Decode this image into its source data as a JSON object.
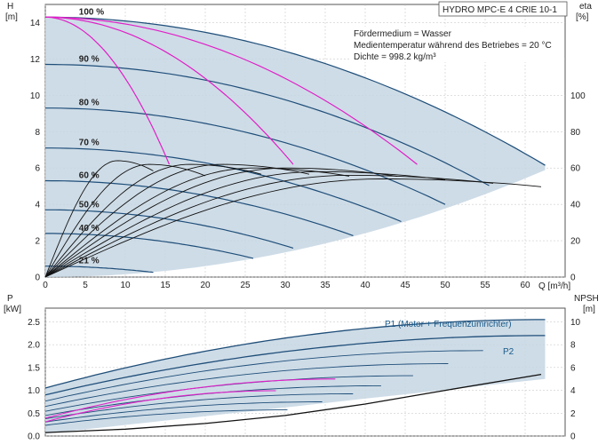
{
  "chart_data": [
    {
      "type": "line",
      "title": "HYDRO MPC-E 4 CRIE 10-1",
      "ylabel": "H",
      "yunit": "[m]",
      "xlabel": "Q [m³/h]",
      "y2label": "eta",
      "y2unit": "[%]",
      "xlim": [
        0,
        65
      ],
      "ylim": [
        0,
        15
      ],
      "y2lim": [
        0,
        150
      ],
      "x_ticks": [
        "0",
        "5",
        "10",
        "15",
        "20",
        "25",
        "30",
        "35",
        "40",
        "45",
        "50",
        "55",
        "60"
      ],
      "y_ticks": [
        "0",
        "2",
        "4",
        "6",
        "8",
        "10",
        "12",
        "14"
      ],
      "y2_ticks": [
        "0",
        "20",
        "40",
        "60",
        "80",
        "100"
      ],
      "grid": true,
      "annotations": [
        "Fördermedium = Wasser",
        "Medientemperatur während des Betriebes = 20 °C",
        "Dichte = 998.2 kg/m³"
      ],
      "speed_labels": [
        {
          "text": "100 %",
          "h": 14.3
        },
        {
          "text": "90 %",
          "h": 11.7
        },
        {
          "text": "80 %",
          "h": 9.3
        },
        {
          "text": "70 %",
          "h": 7.1
        },
        {
          "text": "60 %",
          "h": 5.3
        },
        {
          "text": "50 %",
          "h": 3.7
        },
        {
          "text": "40 %",
          "h": 2.4
        },
        {
          "text": "21 %",
          "h": 0.6
        }
      ],
      "speed_curves": [
        {
          "h0": 14.3,
          "qmax": 62.5
        },
        {
          "h0": 11.7,
          "qmax": 55.5
        },
        {
          "h0": 9.3,
          "qmax": 50
        },
        {
          "h0": 7.1,
          "qmax": 44.5
        },
        {
          "h0": 5.3,
          "qmax": 38.5
        },
        {
          "h0": 3.7,
          "qmax": 31
        },
        {
          "h0": 2.4,
          "qmax": 26
        },
        {
          "h0": 0.6,
          "qmax": 13.5
        }
      ],
      "pump_curves_max": [
        {
          "h0": 14.3,
          "qmax": 15.5,
          "hend": 6.2
        },
        {
          "h0": 14.3,
          "qmax": 31,
          "hend": 6.2
        },
        {
          "h0": 14.3,
          "qmax": 46.5,
          "hend": 6.2
        }
      ],
      "eta_curves": [
        {
          "qend": 13.5,
          "peak": 64,
          "qpeak": 9
        },
        {
          "qend": 20,
          "peak": 62,
          "qpeak": 13
        },
        {
          "qend": 27,
          "peak": 62,
          "qpeak": 18
        },
        {
          "qend": 33,
          "peak": 62,
          "qpeak": 22
        },
        {
          "qend": 38,
          "peak": 60,
          "qpeak": 26
        },
        {
          "qend": 44,
          "peak": 60,
          "qpeak": 30
        },
        {
          "qend": 50,
          "peak": 58,
          "qpeak": 34
        },
        {
          "qend": 56,
          "peak": 56,
          "qpeak": 38
        },
        {
          "qend": 62,
          "peak": 54,
          "qpeak": 42
        }
      ]
    },
    {
      "type": "line",
      "ylabel": "P",
      "yunit": "[kW]",
      "y2label": "NPSH",
      "y2unit": "[m]",
      "xlim": [
        0,
        65
      ],
      "ylim": [
        0,
        2.8
      ],
      "y2lim": [
        0,
        11.2
      ],
      "y_ticks": [
        "0.0",
        "0.5",
        "1.0",
        "1.5",
        "2.0",
        "2.5"
      ],
      "y2_ticks": [
        "0",
        "2",
        "4",
        "6",
        "8",
        "10"
      ],
      "grid": true,
      "series": [
        {
          "name": "P1 (Motor + Frequenzumrichter)",
          "p0": 1.05,
          "qmax": 62.5,
          "pend": 2.55
        },
        {
          "name": "P2",
          "p0": 0.9,
          "qmax": 62.5,
          "pend": 2.2
        }
      ],
      "npsh": {
        "x": [
          0,
          10,
          20,
          30,
          40,
          50,
          62
        ],
        "y": [
          0.3,
          0.6,
          1.1,
          1.8,
          2.8,
          4.0,
          5.4
        ]
      }
    }
  ],
  "colors": {
    "envelope": "#c5d6e3",
    "curve": "#1f4e79",
    "pink": "#e020c8",
    "eta": "#111111",
    "grid": "#bfbfbf"
  }
}
